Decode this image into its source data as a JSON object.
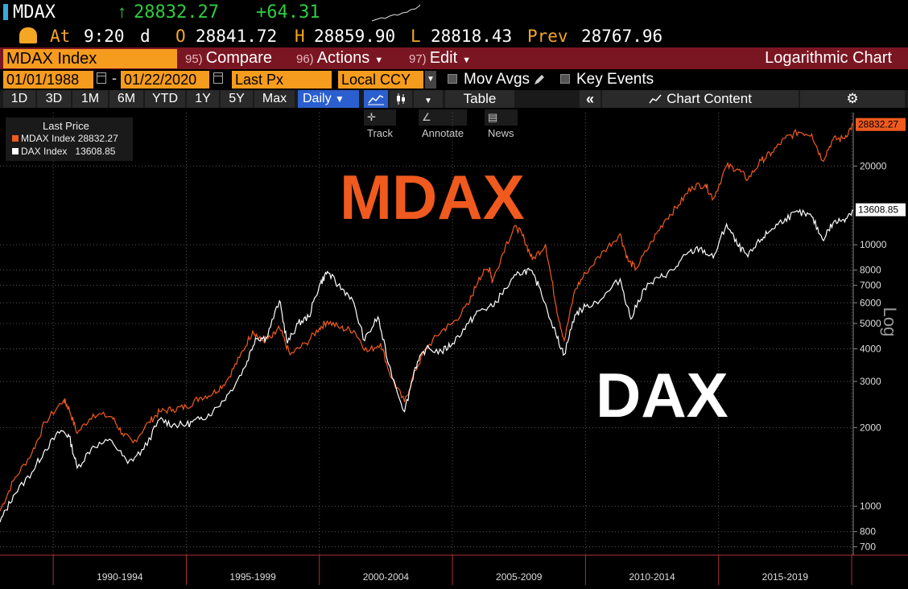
{
  "header": {
    "ticker": "MDAX",
    "last": "28832.27",
    "change": "+64.31",
    "time_label": "At",
    "time": "9:20",
    "time_suffix": "d",
    "open_label": "O",
    "open": "28841.72",
    "high_label": "H",
    "high": "28859.90",
    "low_label": "L",
    "low": "28818.43",
    "prev_label": "Prev",
    "prev": "28767.96"
  },
  "toolbar": {
    "security": "MDAX Index",
    "compare_num": "95)",
    "compare_label": "Compare",
    "actions_num": "96)",
    "actions_label": "Actions",
    "edit_num": "97)",
    "edit_label": "Edit",
    "chart_mode": "Logarithmic Chart"
  },
  "settings": {
    "start_date": "01/01/1988",
    "end_date": "01/22/2020",
    "field": "Last Px",
    "currency": "Local CCY",
    "mov_avgs": "Mov Avgs",
    "key_events": "Key Events"
  },
  "periods": [
    "1D",
    "3D",
    "1M",
    "6M",
    "YTD",
    "1Y",
    "5Y",
    "Max"
  ],
  "frequency": "Daily",
  "table_label": "Table",
  "chart_content_label": "Chart Content",
  "tools": {
    "track": "Track",
    "annotate": "Annotate",
    "news": "News"
  },
  "icons": {
    "clock": "gauge-clock-icon",
    "calendar": "calendar-icon",
    "line_chart": "line-chart-icon",
    "candles": "candlestick-icon",
    "collapse": "double-chevron-left-icon",
    "chart_content": "chart-content-icon",
    "gear": "gear-icon",
    "pencil": "pencil-icon"
  },
  "colors": {
    "mdax": "#f05a1e",
    "dax": "#ffffff",
    "up": "#2ecc40",
    "accent": "#f59b1e",
    "toolbar": "#7a1622"
  },
  "chart_data": {
    "type": "line",
    "title": "",
    "scale": "log",
    "y_axis_label": "Log",
    "ylim": [
      650,
      32000
    ],
    "y_ticks": [
      700,
      800,
      1000,
      2000,
      3000,
      4000,
      5000,
      6000,
      7000,
      8000,
      10000,
      20000
    ],
    "x_range": [
      1988.0,
      2020.06
    ],
    "x_tick_labels": [
      "1990-1994",
      "1995-1999",
      "2000-2004",
      "2005-2009",
      "2010-2014",
      "2015-2019"
    ],
    "x_tick_label_centers": [
      1992.5,
      1997.5,
      2002.5,
      2007.5,
      2012.5,
      2017.5
    ],
    "x_ticks": [
      1990,
      1995,
      2000,
      2005,
      2010,
      2015,
      2020
    ],
    "legend_title": "Last Price",
    "legend": [
      {
        "name": "MDAX Index",
        "value": "28832.27"
      },
      {
        "name": "DAX Index",
        "value": "13608.85"
      }
    ],
    "annotations": [
      {
        "text": "MDAX"
      },
      {
        "text": "DAX"
      }
    ],
    "series": [
      {
        "name": "MDAX Index",
        "last_label": "28832.27",
        "points": [
          [
            1988.0,
            960
          ],
          [
            1988.5,
            1250
          ],
          [
            1989.2,
            1600
          ],
          [
            1989.7,
            2100
          ],
          [
            1990.4,
            2550
          ],
          [
            1990.6,
            2350
          ],
          [
            1990.9,
            1900
          ],
          [
            1991.5,
            2250
          ],
          [
            1992.2,
            2200
          ],
          [
            1992.6,
            1900
          ],
          [
            1993.0,
            1750
          ],
          [
            1993.6,
            2100
          ],
          [
            1994.0,
            2300
          ],
          [
            1994.5,
            2350
          ],
          [
            1995.0,
            2400
          ],
          [
            1995.5,
            2600
          ],
          [
            1996.0,
            2700
          ],
          [
            1996.5,
            3000
          ],
          [
            1997.0,
            3700
          ],
          [
            1997.5,
            4700
          ],
          [
            1997.8,
            4300
          ],
          [
            1998.2,
            4400
          ],
          [
            1998.5,
            4800
          ],
          [
            1998.9,
            3800
          ],
          [
            1999.5,
            4200
          ],
          [
            2000.0,
            4800
          ],
          [
            2000.3,
            5100
          ],
          [
            2000.8,
            4800
          ],
          [
            2001.3,
            4700
          ],
          [
            2001.8,
            3900
          ],
          [
            2002.3,
            4200
          ],
          [
            2002.7,
            3100
          ],
          [
            2003.2,
            2500
          ],
          [
            2003.6,
            3300
          ],
          [
            2004.0,
            4000
          ],
          [
            2004.6,
            4700
          ],
          [
            2005.0,
            5000
          ],
          [
            2005.6,
            5900
          ],
          [
            2006.0,
            7500
          ],
          [
            2006.4,
            8200
          ],
          [
            2006.5,
            7200
          ],
          [
            2007.0,
            10000
          ],
          [
            2007.4,
            11800
          ],
          [
            2007.7,
            10500
          ],
          [
            2008.0,
            8800
          ],
          [
            2008.5,
            10000
          ],
          [
            2008.9,
            5800
          ],
          [
            2009.2,
            4300
          ],
          [
            2009.6,
            6700
          ],
          [
            2010.0,
            7800
          ],
          [
            2010.7,
            9500
          ],
          [
            2011.3,
            11000
          ],
          [
            2011.6,
            8700
          ],
          [
            2011.9,
            8100
          ],
          [
            2012.5,
            10300
          ],
          [
            2013.0,
            12500
          ],
          [
            2013.5,
            14200
          ],
          [
            2014.0,
            16700
          ],
          [
            2014.5,
            17000
          ],
          [
            2014.8,
            15000
          ],
          [
            2015.3,
            20000
          ],
          [
            2015.7,
            19500
          ],
          [
            2016.1,
            17800
          ],
          [
            2016.6,
            21000
          ],
          [
            2017.0,
            22500
          ],
          [
            2017.5,
            25500
          ],
          [
            2018.0,
            27000
          ],
          [
            2018.5,
            26500
          ],
          [
            2018.9,
            21000
          ],
          [
            2019.3,
            25300
          ],
          [
            2019.7,
            25500
          ],
          [
            2020.06,
            28832.27
          ]
        ]
      },
      {
        "name": "DAX Index",
        "last_label": "13608.85",
        "points": [
          [
            1988.0,
            870
          ],
          [
            1988.5,
            1100
          ],
          [
            1989.2,
            1350
          ],
          [
            1989.7,
            1650
          ],
          [
            1990.3,
            1950
          ],
          [
            1990.6,
            1850
          ],
          [
            1990.9,
            1400
          ],
          [
            1991.5,
            1700
          ],
          [
            1992.2,
            1780
          ],
          [
            1992.8,
            1460
          ],
          [
            1993.4,
            1650
          ],
          [
            1994.0,
            2150
          ],
          [
            1994.5,
            2050
          ],
          [
            1995.0,
            2050
          ],
          [
            1995.5,
            2150
          ],
          [
            1996.0,
            2300
          ],
          [
            1996.6,
            2700
          ],
          [
            1997.2,
            3400
          ],
          [
            1997.6,
            4400
          ],
          [
            1998.0,
            4400
          ],
          [
            1998.5,
            6100
          ],
          [
            1998.8,
            4200
          ],
          [
            1999.2,
            5000
          ],
          [
            1999.6,
            5300
          ],
          [
            2000.0,
            7000
          ],
          [
            2000.3,
            7900
          ],
          [
            2000.7,
            7000
          ],
          [
            2001.2,
            6300
          ],
          [
            2001.7,
            4300
          ],
          [
            2002.2,
            5300
          ],
          [
            2002.6,
            3500
          ],
          [
            2003.2,
            2300
          ],
          [
            2003.6,
            3400
          ],
          [
            2004.0,
            4000
          ],
          [
            2004.6,
            3900
          ],
          [
            2005.0,
            4200
          ],
          [
            2005.6,
            5000
          ],
          [
            2006.0,
            5600
          ],
          [
            2006.5,
            5800
          ],
          [
            2007.0,
            6800
          ],
          [
            2007.5,
            7800
          ],
          [
            2007.9,
            8000
          ],
          [
            2008.3,
            6800
          ],
          [
            2008.9,
            4500
          ],
          [
            2009.2,
            3800
          ],
          [
            2009.6,
            5400
          ],
          [
            2010.0,
            5800
          ],
          [
            2010.6,
            6200
          ],
          [
            2011.3,
            7400
          ],
          [
            2011.7,
            5200
          ],
          [
            2012.2,
            6800
          ],
          [
            2012.8,
            7500
          ],
          [
            2013.3,
            8000
          ],
          [
            2013.8,
            9200
          ],
          [
            2014.3,
            9700
          ],
          [
            2014.8,
            8900
          ],
          [
            2015.3,
            12000
          ],
          [
            2015.7,
            10000
          ],
          [
            2016.1,
            9000
          ],
          [
            2016.6,
            10500
          ],
          [
            2017.0,
            11500
          ],
          [
            2017.5,
            12600
          ],
          [
            2018.0,
            13300
          ],
          [
            2018.5,
            12800
          ],
          [
            2018.9,
            10500
          ],
          [
            2019.3,
            12100
          ],
          [
            2019.7,
            12500
          ],
          [
            2020.06,
            13608.85
          ]
        ]
      }
    ]
  }
}
